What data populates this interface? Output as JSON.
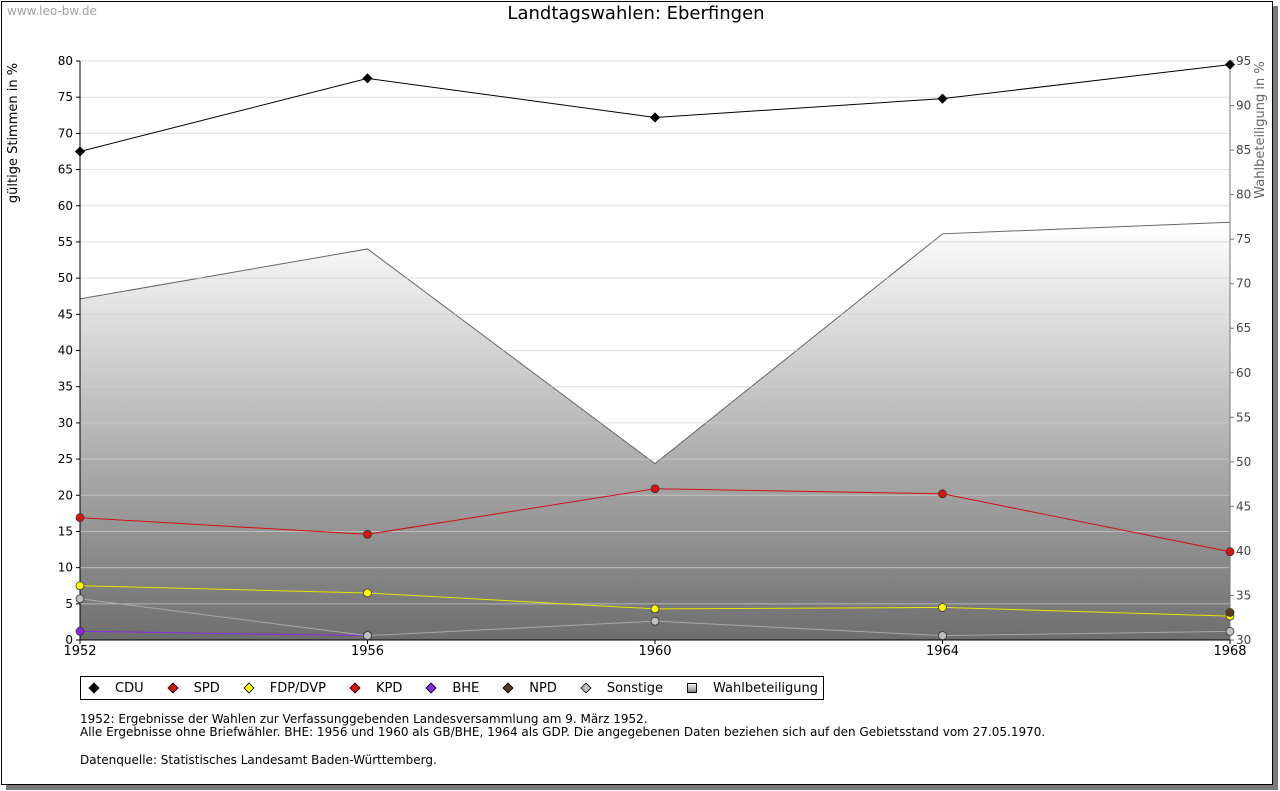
{
  "watermark": "www.leo-bw.de",
  "chart_data": {
    "type": "line",
    "title": "Landtagswahlen: Eberfingen",
    "ylabel": "gültige Stimmen in %",
    "y2label": "Wahlbeteiligung in %",
    "x": [
      "1952",
      "1956",
      "1960",
      "1964",
      "1968"
    ],
    "ylim": [
      0,
      80
    ],
    "y2lim": [
      30,
      95
    ],
    "yticks": [
      "0",
      "5",
      "10",
      "15",
      "20",
      "25",
      "30",
      "35",
      "40",
      "45",
      "50",
      "55",
      "60",
      "65",
      "70",
      "75",
      "80"
    ],
    "y2ticks": [
      "30",
      "35",
      "40",
      "45",
      "50",
      "55",
      "60",
      "65",
      "70",
      "75",
      "80",
      "85",
      "90",
      "95"
    ],
    "grid": true,
    "legend_position": "bottom",
    "series": [
      {
        "name": "CDU",
        "color": "#000000",
        "marker": "#000000",
        "values": [
          67.5,
          77.6,
          72.2,
          74.8,
          79.5
        ]
      },
      {
        "name": "SPD",
        "color": "#d01010",
        "marker": "#dd1111",
        "values": [
          16.9,
          14.6,
          20.9,
          20.2,
          12.2
        ]
      },
      {
        "name": "FDP/DVP",
        "color": "#e6e600",
        "marker": "#ffff00",
        "values": [
          7.5,
          6.5,
          4.3,
          4.5,
          3.3
        ]
      },
      {
        "name": "KPD",
        "color": "#d01010",
        "marker": "#dd1111",
        "values": [
          null,
          null,
          null,
          null,
          null
        ]
      },
      {
        "name": "BHE",
        "color": "#8a2be2",
        "marker": "#8a2be2",
        "values": [
          1.2,
          0.6,
          null,
          null,
          null
        ]
      },
      {
        "name": "NPD",
        "color": "#5a3a20",
        "marker": "#5a3a20",
        "values": [
          null,
          null,
          null,
          null,
          3.8
        ]
      },
      {
        "name": "Sonstige",
        "color": "#a8a8a8",
        "marker": "#c0c0c0",
        "values": [
          5.7,
          0.6,
          2.6,
          0.6,
          1.2
        ]
      },
      {
        "name": "Wahlbeteiligung",
        "axis": "right",
        "color": "#666666",
        "values": [
          68.3,
          73.9,
          49.8,
          75.6,
          76.9
        ]
      }
    ]
  },
  "legend": [
    {
      "label": "CDU",
      "color": "#000000",
      "shape": "diamond"
    },
    {
      "label": "SPD",
      "color": "#dd1111",
      "shape": "diamond"
    },
    {
      "label": "FDP/DVP",
      "color": "#ffff00",
      "shape": "diamond"
    },
    {
      "label": "KPD",
      "color": "#dd1111",
      "shape": "diamond"
    },
    {
      "label": "BHE",
      "color": "#8a2be2",
      "shape": "diamond"
    },
    {
      "label": "NPD",
      "color": "#5a3a20",
      "shape": "diamond"
    },
    {
      "label": "Sonstige",
      "color": "#c0c0c0",
      "shape": "diamond"
    },
    {
      "label": "Wahlbeteiligung",
      "color": "#aaaaaa",
      "shape": "square"
    }
  ],
  "notes": [
    "1952: Ergebnisse der Wahlen zur Verfassunggebenden Landesversammlung am 9. März 1952.",
    "Alle Ergebnisse ohne Briefwähler. BHE: 1956 und 1960 als GB/BHE, 1964 als GDP. Die angegebenen Daten beziehen sich auf den Gebietsstand vom 27.05.1970."
  ],
  "source": "Datenquelle: Statistisches Landesamt Baden-Württemberg."
}
